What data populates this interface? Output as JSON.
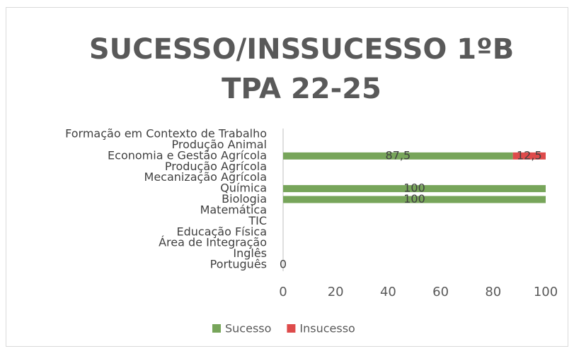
{
  "chart_data": {
    "type": "stacked_barh",
    "title": [
      "SUCESSO/INSSUCESSO 1ºB",
      "TPA 22-25"
    ],
    "categories": [
      "Português",
      "Inglês",
      "Área de Integração",
      "Educação Física",
      "TIC",
      "Matemática",
      "Biologia",
      "Química",
      "Mecanização Agrícola",
      "Produção Agrícola",
      "Economia e Gestão Agrícola",
      "Produção Animal",
      "Formação em Contexto de Trabalho"
    ],
    "series": [
      {
        "name": "Sucesso",
        "color": "#77a55a",
        "values": [
          0,
          null,
          null,
          null,
          null,
          null,
          100,
          100,
          null,
          null,
          87.5,
          null,
          null
        ],
        "value_labels": [
          "0",
          null,
          null,
          null,
          null,
          null,
          "100",
          "100",
          null,
          null,
          "87,5",
          null,
          null
        ]
      },
      {
        "name": "Insucesso",
        "color": "#de4b4b",
        "values": [
          null,
          null,
          null,
          null,
          null,
          null,
          null,
          null,
          null,
          null,
          12.5,
          null,
          null
        ],
        "value_labels": [
          null,
          null,
          null,
          null,
          null,
          null,
          null,
          null,
          null,
          null,
          "12,5",
          null,
          null
        ]
      }
    ],
    "xlim": [
      0,
      100
    ],
    "xticks": [
      0,
      20,
      40,
      60,
      80,
      100
    ],
    "grid": false,
    "legend": "bottom"
  }
}
